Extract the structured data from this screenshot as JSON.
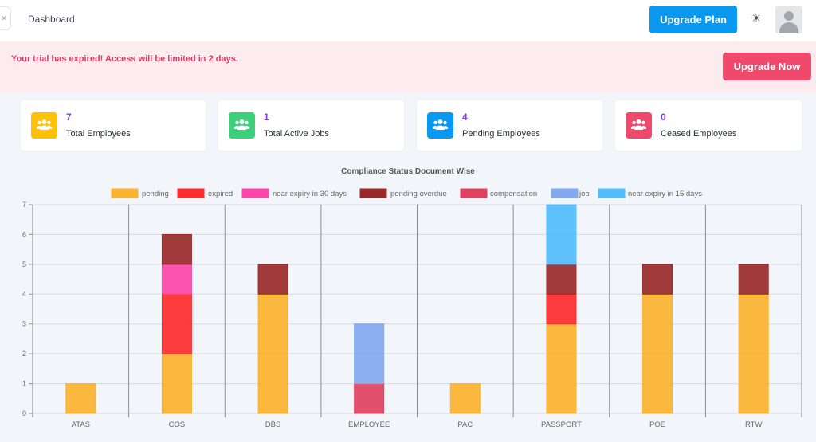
{
  "header": {
    "close_glyph": "×",
    "title": "Dashboard",
    "upgrade_plan_label": "Upgrade Plan",
    "theme_icon": "sun-icon"
  },
  "alert": {
    "message": "Your trial has expired! Access will be limited in 2 days.",
    "button_label": "Upgrade Now",
    "color": "#e63a63"
  },
  "stats": [
    {
      "value": "7",
      "label": "Total Employees",
      "color": "#ffc107",
      "icon": "users-icon"
    },
    {
      "value": "1",
      "label": "Total Active Jobs",
      "color": "#3ecf7a",
      "icon": "users-icon"
    },
    {
      "value": "4",
      "label": "Pending Employees",
      "color": "#0a98f0",
      "icon": "users-icon"
    },
    {
      "value": "0",
      "label": "Ceased Employees",
      "color": "#ef4a6c",
      "icon": "users-icon"
    }
  ],
  "chart_data": {
    "type": "bar",
    "stacked": true,
    "title": "Compliance Status Document Wise",
    "categories": [
      "ATAS",
      "COS",
      "DBS",
      "EMPLOYEE",
      "PAC",
      "PASSPORT",
      "POE",
      "RTW"
    ],
    "ylim": [
      0,
      7
    ],
    "yticks": [
      0,
      1,
      2,
      3,
      4,
      5,
      6,
      7
    ],
    "grid": true,
    "legend_position": "top",
    "series": [
      {
        "name": "pending",
        "color": "#fbb22e",
        "values": [
          1,
          2,
          4,
          0,
          1,
          3,
          4,
          4
        ]
      },
      {
        "name": "expired",
        "color": "#fe2c2c",
        "values": [
          0,
          2,
          0,
          0,
          0,
          1,
          0,
          0
        ]
      },
      {
        "name": "near expiry in 30 days",
        "color": "#fe45a8",
        "values": [
          0,
          1,
          0,
          0,
          0,
          0,
          0,
          0
        ]
      },
      {
        "name": "pending overdue",
        "color": "#9a2a2a",
        "values": [
          0,
          1,
          1,
          0,
          0,
          1,
          1,
          1
        ]
      },
      {
        "name": "compensation",
        "color": "#e0415e",
        "values": [
          0,
          0,
          0,
          1,
          0,
          0,
          0,
          0
        ]
      },
      {
        "name": "job",
        "color": "#82a8ee",
        "values": [
          0,
          0,
          0,
          2,
          0,
          0,
          0,
          0
        ]
      },
      {
        "name": "near expiry in 15 days",
        "color": "#52bcfb",
        "values": [
          0,
          0,
          0,
          0,
          0,
          2,
          0,
          0
        ]
      }
    ]
  }
}
